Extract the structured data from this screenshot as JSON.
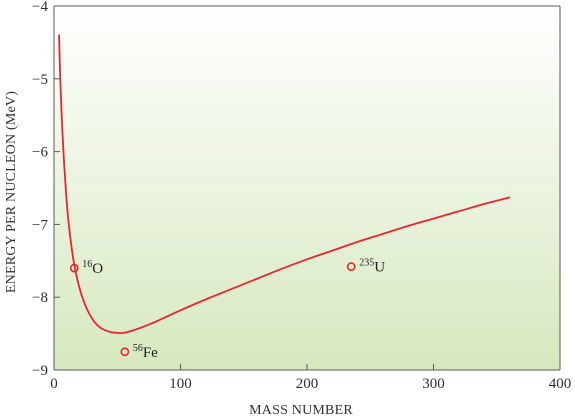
{
  "chart_data": {
    "type": "line",
    "title": "",
    "xlabel": "MASS NUMBER",
    "ylabel": "ENERGY PER NUCLEON (MeV)",
    "xlim": [
      0,
      400
    ],
    "ylim": [
      -9,
      -4
    ],
    "xticks": [
      0,
      100,
      200,
      300,
      400
    ],
    "yticks": [
      -4,
      -5,
      -6,
      -7,
      -8,
      -9
    ],
    "xtick_labels": [
      "0",
      "100",
      "200",
      "300",
      "400"
    ],
    "ytick_labels": [
      "−4",
      "−5",
      "−6",
      "−7",
      "−8",
      "−9"
    ],
    "grid": false,
    "background": "vertical gradient from white (top) to pale green (bottom)",
    "colors": {
      "curve": "#e8262c",
      "markers": "#e8262c",
      "background_top": "#ffffff",
      "background_bottom": "#d6e8bf",
      "axis": "#5a5a5a"
    },
    "series": [
      {
        "x": [
          4,
          5,
          6,
          7,
          8,
          9,
          10,
          11,
          12,
          14,
          16,
          18,
          20,
          22,
          25,
          28,
          32,
          36,
          40,
          45,
          50,
          55,
          60,
          70,
          80,
          90,
          100,
          120,
          140,
          160,
          180,
          200,
          220,
          240,
          260,
          280,
          300,
          320,
          340,
          360
        ],
        "y": [
          -4.4,
          -5.03,
          -5.48,
          -5.85,
          -6.16,
          -6.43,
          -6.68,
          -6.88,
          -7.05,
          -7.33,
          -7.55,
          -7.72,
          -7.86,
          -7.98,
          -8.12,
          -8.23,
          -8.34,
          -8.41,
          -8.45,
          -8.48,
          -8.49,
          -8.49,
          -8.47,
          -8.41,
          -8.34,
          -8.26,
          -8.18,
          -8.03,
          -7.89,
          -7.75,
          -7.61,
          -7.48,
          -7.36,
          -7.24,
          -7.13,
          -7.02,
          -6.92,
          -6.82,
          -6.72,
          -6.63
        ]
      }
    ],
    "points": [
      {
        "x": 16,
        "y": -7.6,
        "label_sup": "16",
        "label": "O"
      },
      {
        "x": 56,
        "y": -8.75,
        "label_sup": "56",
        "label": "Fe"
      },
      {
        "x": 235,
        "y": -7.58,
        "label_sup": "235",
        "label": "U"
      }
    ]
  }
}
